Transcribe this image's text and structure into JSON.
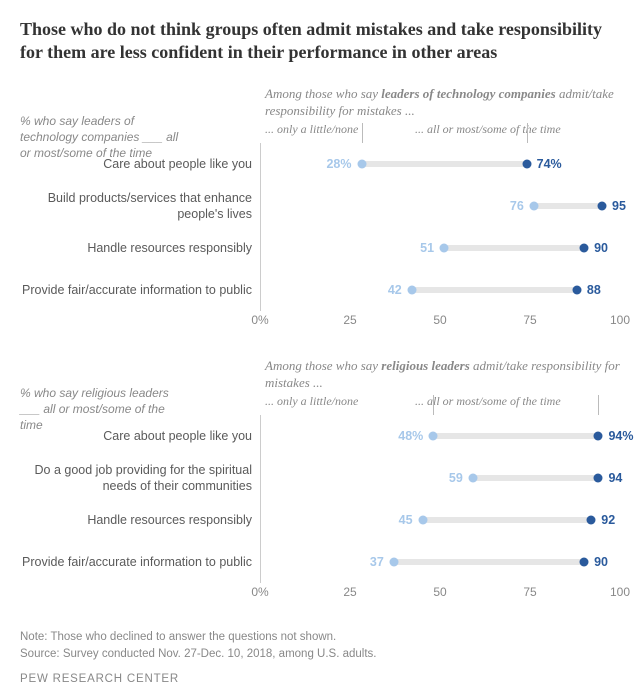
{
  "title": "Those who do not think groups often admit mistakes and take responsibility for them are less confident in their performance in other areas",
  "xmin": 0,
  "xmax": 100,
  "xticks": [
    0,
    25,
    50,
    75,
    100
  ],
  "color_low": "#a7c8ea",
  "color_high": "#2a5a9c",
  "connector_color": "#e6e6e6",
  "legend_low": "... only a little/none",
  "legend_high": "... all or most/some of the time",
  "charts": [
    {
      "y_label_html": "% who say leaders of technology companies ___ all or most/some of the time",
      "subtitle_pre": "Among those who say ",
      "subtitle_bold": "leaders of technology companies",
      "subtitle_post": " admit/take responsibility for mistakes ...",
      "rows": [
        {
          "label": "Care about people like you",
          "low": 28,
          "high": 74,
          "low_suffix": "%",
          "high_suffix": "%"
        },
        {
          "label": "Build products/services that enhance people's lives",
          "low": 76,
          "high": 95,
          "low_suffix": "",
          "high_suffix": ""
        },
        {
          "label": "Handle resources responsibly",
          "low": 51,
          "high": 90,
          "low_suffix": "",
          "high_suffix": ""
        },
        {
          "label": "Provide fair/accurate information to public",
          "low": 42,
          "high": 88,
          "low_suffix": "",
          "high_suffix": ""
        }
      ]
    },
    {
      "y_label_html": "% who say religious leaders ___ all or most/some of the time",
      "subtitle_pre": "Among those who say ",
      "subtitle_bold": "religious leaders",
      "subtitle_post": " admit/take responsibility for mistakes ...",
      "rows": [
        {
          "label": "Care about people like you",
          "low": 48,
          "high": 94,
          "low_suffix": "%",
          "high_suffix": "%"
        },
        {
          "label": "Do a good job providing for the spiritual needs of their communities",
          "low": 59,
          "high": 94,
          "low_suffix": "",
          "high_suffix": ""
        },
        {
          "label": "Handle resources responsibly",
          "low": 45,
          "high": 92,
          "low_suffix": "",
          "high_suffix": ""
        },
        {
          "label": "Provide fair/accurate information to public",
          "low": 37,
          "high": 90,
          "low_suffix": "",
          "high_suffix": ""
        }
      ]
    }
  ],
  "note": "Note: Those who declined to answer the questions not shown.",
  "source": "Source: Survey conducted Nov. 27-Dec. 10, 2018, among U.S. adults.",
  "brand": "PEW RESEARCH CENTER"
}
